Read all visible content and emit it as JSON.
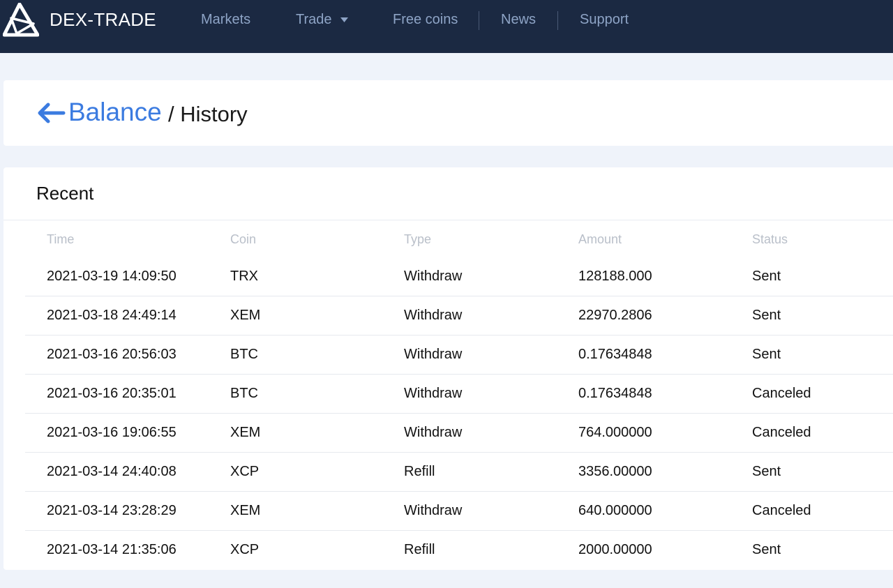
{
  "header": {
    "brand": "DEX-TRADE",
    "nav": [
      "Markets",
      "Trade",
      "Free coins",
      "News",
      "Support"
    ]
  },
  "breadcrumb": {
    "parent": "Balance",
    "current": "/ History"
  },
  "recent": {
    "title": "Recent",
    "columns": [
      "Time",
      "Coin",
      "Type",
      "Amount",
      "Status"
    ],
    "rows": [
      [
        "2021-03-19 14:09:50",
        "TRX",
        "Withdraw",
        "128188.000",
        "Sent"
      ],
      [
        "2021-03-18 24:49:14",
        "XEM",
        "Withdraw",
        "22970.2806",
        "Sent"
      ],
      [
        "2021-03-16 20:56:03",
        "BTC",
        "Withdraw",
        "0.17634848",
        "Sent"
      ],
      [
        "2021-03-16 20:35:01",
        "BTC",
        "Withdraw",
        "0.17634848",
        "Canceled"
      ],
      [
        "2021-03-16 19:06:55",
        "XEM",
        "Withdraw",
        "764.000000",
        "Canceled"
      ],
      [
        "2021-03-14 24:40:08",
        "XCP",
        "Refill",
        "3356.00000",
        "Sent"
      ],
      [
        "2021-03-14 23:28:29",
        "XEM",
        "Withdraw",
        "640.000000",
        "Canceled"
      ],
      [
        "2021-03-14 21:35:06",
        "XCP",
        "Refill",
        "2000.00000",
        "Sent"
      ]
    ]
  },
  "colors": {
    "header_bg": "#1b2942",
    "nav_text": "#8ea4c6",
    "accent": "#3b7be0",
    "page_bg": "#eff3fa"
  }
}
